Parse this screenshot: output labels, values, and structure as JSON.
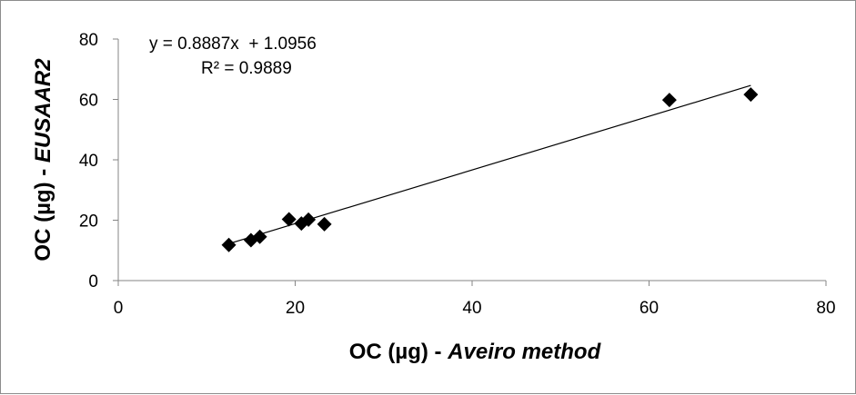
{
  "chart_data": {
    "type": "scatter",
    "x": [
      12.5,
      15.0,
      16.0,
      19.3,
      20.7,
      21.5,
      23.3,
      62.3,
      71.5
    ],
    "y": [
      11.8,
      13.4,
      14.5,
      20.3,
      18.9,
      20.2,
      18.7,
      59.8,
      61.6
    ],
    "xlim": [
      0,
      80
    ],
    "ylim": [
      0,
      80
    ],
    "xticks": [
      "0",
      "20",
      "40",
      "60",
      "80"
    ],
    "yticks": [
      "0",
      "20",
      "40",
      "60",
      "80"
    ],
    "xlabel_main": "OC (µg) - ",
    "xlabel_italic": "Aveiro method",
    "ylabel_main": "OC (µg) - ",
    "ylabel_italic": "EUSAAR2",
    "trendline": {
      "slope": 0.8887,
      "intercept": 1.0956,
      "x_range": [
        12.5,
        71.5
      ],
      "equation": "y = 0.8887x  + 1.0956",
      "r2": "R² = 0.9889"
    },
    "grid": false,
    "legend": "none",
    "marker_color": "#000000"
  }
}
